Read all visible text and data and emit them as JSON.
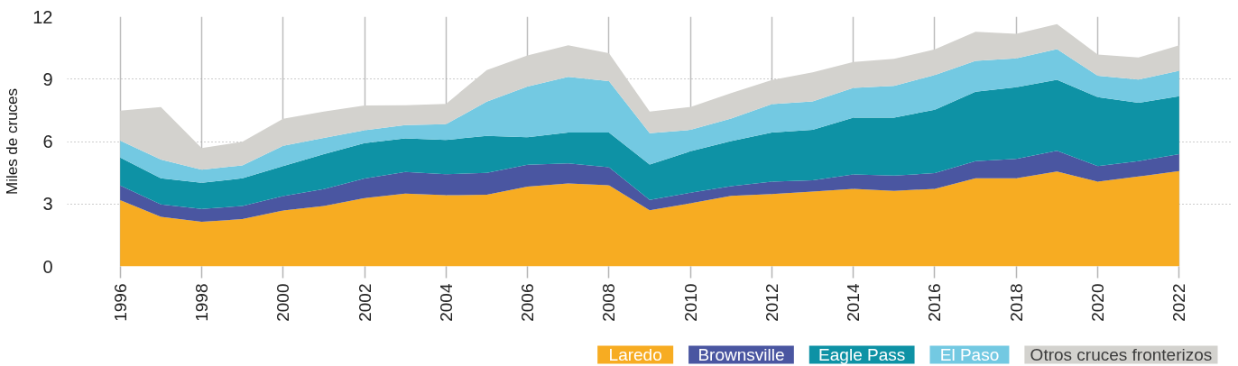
{
  "chart_data": {
    "type": "area",
    "stacked": true,
    "ylabel": "Miles de cruces",
    "legend": "bottom right",
    "grid": true,
    "x": [
      1996,
      1997,
      1998,
      1999,
      2000,
      2001,
      2002,
      2003,
      2004,
      2005,
      2006,
      2007,
      2008,
      2009,
      2010,
      2011,
      2012,
      2013,
      2014,
      2015,
      2016,
      2017,
      2018,
      2019,
      2020,
      2021,
      2022
    ],
    "xlim": [
      1994.7,
      2023.3
    ],
    "xticks": [
      1996,
      1998,
      2000,
      2002,
      2004,
      2006,
      2008,
      2010,
      2012,
      2014,
      2016,
      2018,
      2020,
      2022
    ],
    "ylim": [
      0,
      12
    ],
    "yticks": [
      0,
      3,
      6,
      9,
      12
    ],
    "series": [
      {
        "name": "Laredo",
        "color": "#f7ac22",
        "values": [
          3.18,
          2.38,
          2.14,
          2.27,
          2.69,
          2.9,
          3.28,
          3.5,
          3.42,
          3.44,
          3.83,
          3.99,
          3.9,
          2.7,
          3.03,
          3.39,
          3.48,
          3.6,
          3.73,
          3.63,
          3.73,
          4.23,
          4.23,
          4.56,
          4.07,
          4.32,
          4.58
        ]
      },
      {
        "name": "Brownsville",
        "color": "#4a56a1",
        "values": [
          0.71,
          0.6,
          0.62,
          0.63,
          0.69,
          0.81,
          0.94,
          1.04,
          1.01,
          1.05,
          1.05,
          0.96,
          0.87,
          0.49,
          0.51,
          0.47,
          0.59,
          0.54,
          0.69,
          0.73,
          0.75,
          0.83,
          0.94,
          1.0,
          0.75,
          0.74,
          0.81
        ]
      },
      {
        "name": "Eagle Pass",
        "color": "#0e92a5",
        "values": [
          1.34,
          1.25,
          1.26,
          1.33,
          1.44,
          1.68,
          1.7,
          1.61,
          1.65,
          1.78,
          1.33,
          1.48,
          1.66,
          1.71,
          1.99,
          2.16,
          2.36,
          2.42,
          2.73,
          2.79,
          3.05,
          3.33,
          3.44,
          3.41,
          3.31,
          2.8,
          2.79
        ]
      },
      {
        "name": "El Paso",
        "color": "#73c9e2",
        "values": [
          0.81,
          0.9,
          0.63,
          0.62,
          0.97,
          0.78,
          0.62,
          0.64,
          0.75,
          1.65,
          2.43,
          2.68,
          2.47,
          1.5,
          1.03,
          1.09,
          1.37,
          1.37,
          1.43,
          1.53,
          1.66,
          1.49,
          1.39,
          1.47,
          1.03,
          1.12,
          1.22
        ]
      },
      {
        "name": "Otros cruces fronterizos",
        "color": "#d3d2ce",
        "values": [
          1.44,
          2.53,
          1.04,
          1.14,
          1.3,
          1.27,
          1.19,
          0.95,
          0.98,
          1.51,
          1.5,
          1.51,
          1.35,
          1.04,
          1.1,
          1.22,
          1.16,
          1.39,
          1.24,
          1.29,
          1.24,
          1.39,
          1.18,
          1.2,
          1.02,
          1.06,
          1.22
        ]
      }
    ]
  }
}
